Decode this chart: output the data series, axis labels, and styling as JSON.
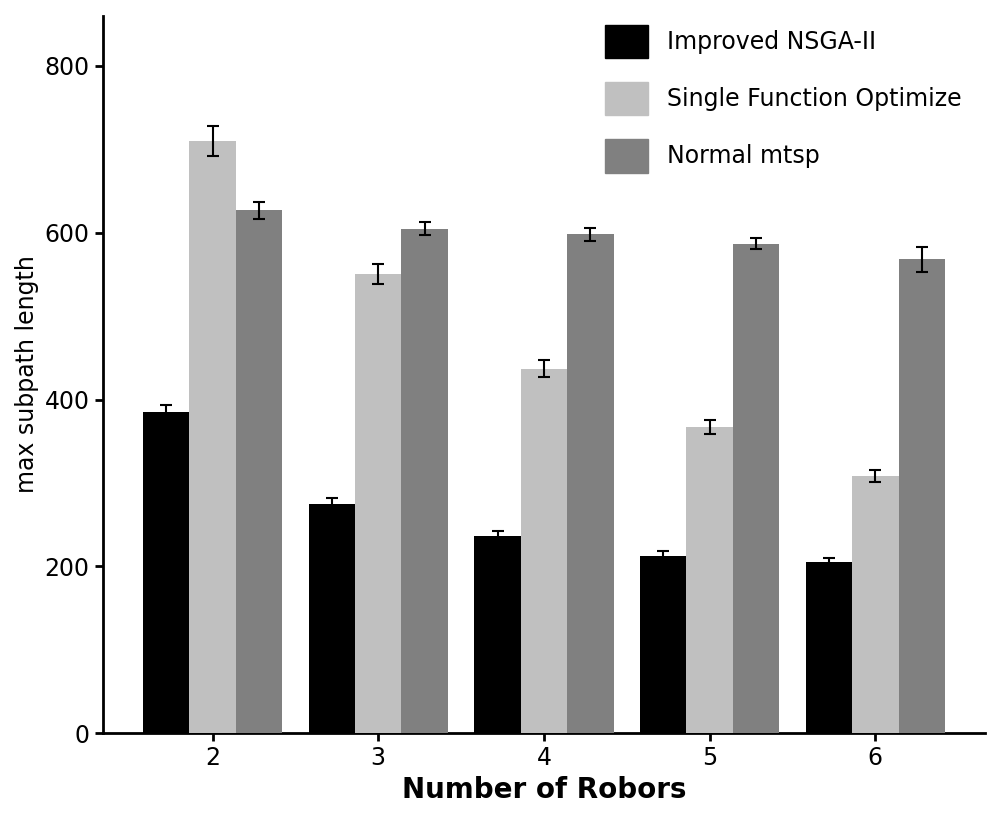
{
  "categories": [
    2,
    3,
    4,
    5,
    6
  ],
  "series": {
    "Improved NSGA-II": {
      "values": [
        385,
        275,
        237,
        213,
        205
      ],
      "errors": [
        8,
        7,
        6,
        5,
        5
      ],
      "color": "#000000",
      "hatch": ""
    },
    "Single Function Optimize": {
      "values": [
        710,
        550,
        437,
        367,
        308
      ],
      "errors": [
        18,
        12,
        10,
        8,
        7
      ],
      "color": "#c0c0c0",
      "hatch": ""
    },
    "Normal mtsp": {
      "values": [
        627,
        605,
        598,
        587,
        568
      ],
      "errors": [
        10,
        8,
        8,
        7,
        15
      ],
      "color": "#808080",
      "hatch": ""
    }
  },
  "ylabel": "max subpath length",
  "xlabel": "Number of Robors",
  "ylim": [
    0,
    860
  ],
  "yticks": [
    0,
    200,
    400,
    600,
    800
  ],
  "bar_width": 0.28,
  "legend_order": [
    "Improved NSGA-II",
    "Single Function Optimize",
    "Normal mtsp"
  ],
  "xlabel_fontsize": 20,
  "ylabel_fontsize": 17,
  "tick_fontsize": 17,
  "legend_fontsize": 17,
  "background_color": "#ffffff",
  "capsize": 4,
  "figsize": [
    10.0,
    8.19
  ]
}
